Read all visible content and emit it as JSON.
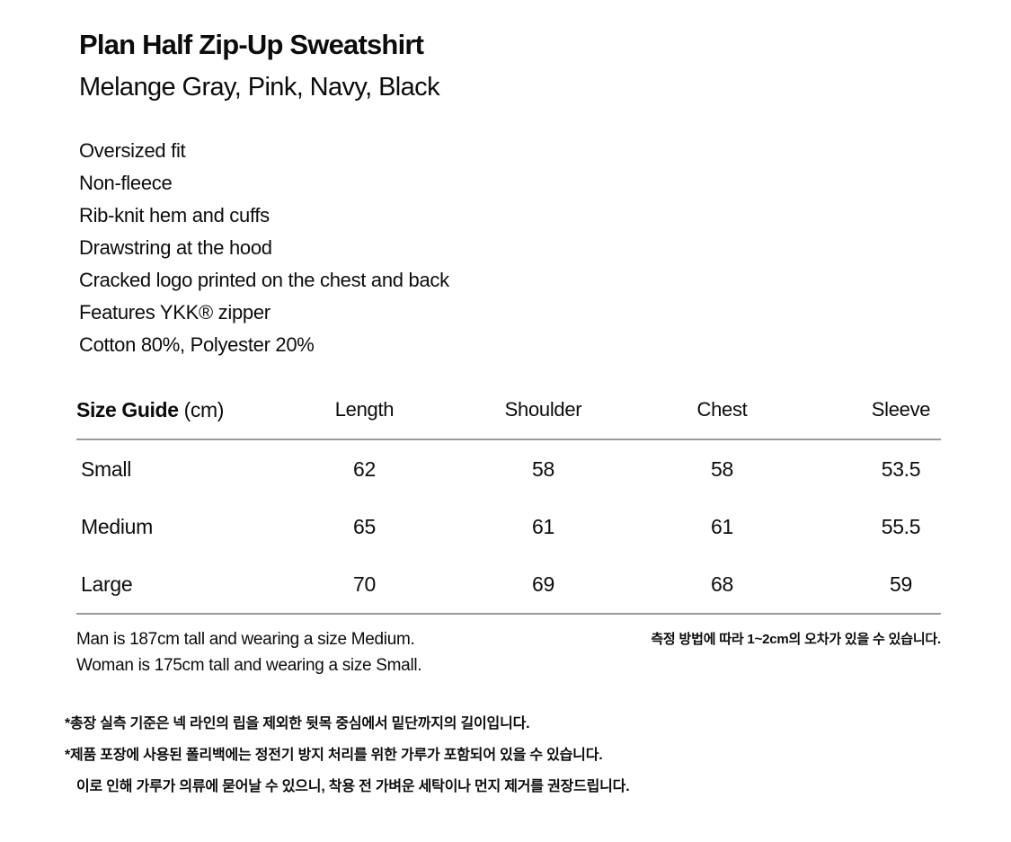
{
  "product": {
    "title": "Plan Half Zip-Up Sweatshirt",
    "colors": "Melange Gray, Pink, Navy, Black",
    "features": [
      "Oversized fit",
      "Non-fleece",
      "Rib-knit hem and cuffs",
      "Drawstring at the hood",
      "Cracked logo printed on the chest and back",
      "Features YKK® zipper",
      "Cotton 80%, Polyester 20%"
    ]
  },
  "size_guide": {
    "title": "Size Guide",
    "unit": "(cm)",
    "columns": [
      "Length",
      "Shoulder",
      "Chest",
      "Sleeve"
    ],
    "rows": [
      {
        "size": "Small",
        "values": [
          "62",
          "58",
          "58",
          "53.5"
        ]
      },
      {
        "size": "Medium",
        "values": [
          "65",
          "61",
          "61",
          "55.5"
        ]
      },
      {
        "size": "Large",
        "values": [
          "70",
          "69",
          "68",
          "59"
        ]
      }
    ],
    "model_notes": [
      "Man is 187cm tall and wearing a size Medium.",
      "Woman is 175cm tall and wearing a size Small."
    ],
    "tolerance_note": "측정 방법에 따라 1~2cm의 오차가 있을 수 있습니다."
  },
  "footnotes": [
    "*총장 실측 기준은 넥 라인의 립을 제외한 뒷목 중심에서 밑단까지의 길이입니다.",
    "*제품 포장에 사용된 폴리백에는 정전기 방지 처리를 위한 가루가 포함되어 있을 수 있습니다.",
    "이로 인해 가루가 의류에 묻어날 수 있으니, 착용 전 가벼운 세탁이나 먼지 제거를 권장드립니다."
  ]
}
